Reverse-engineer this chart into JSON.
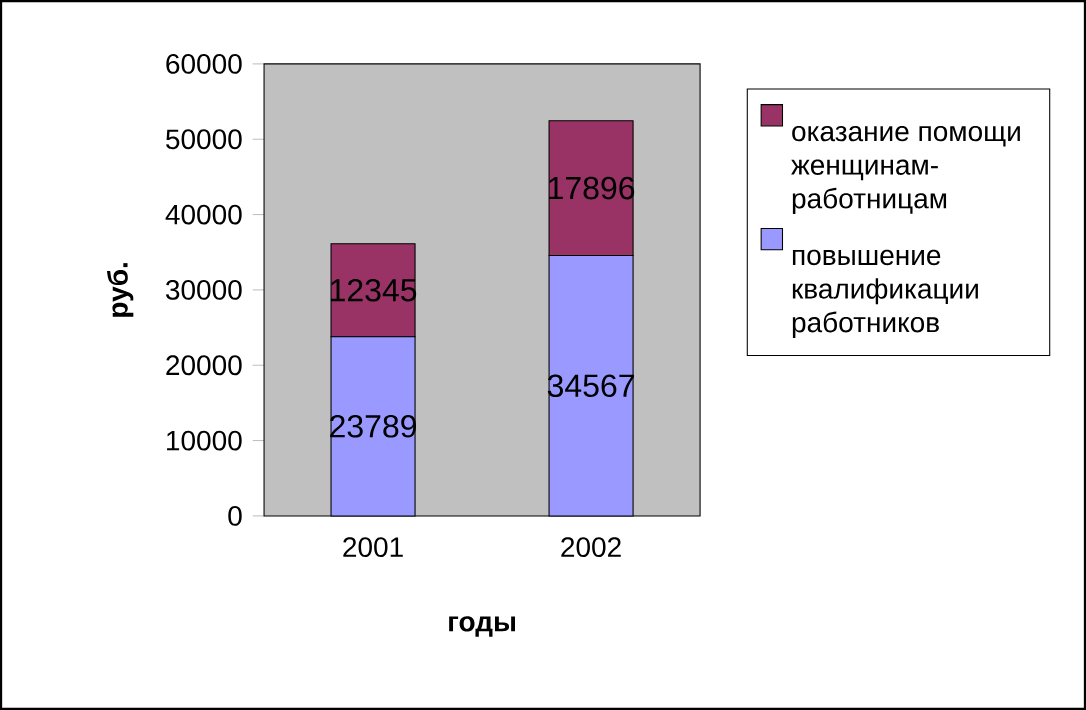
{
  "chart_data": {
    "type": "bar",
    "stacked": true,
    "xlabel": "годы",
    "ylabel": "руб.",
    "categories": [
      "2001",
      "2002"
    ],
    "series": [
      {
        "name": "повышение квалификации работников",
        "color": "#9999ff",
        "values": [
          23789,
          34567
        ],
        "value_labels": [
          "23789",
          "34567"
        ]
      },
      {
        "name": "оказание помощи женщинам-работницам",
        "color": "#993366",
        "values": [
          12345,
          17896
        ],
        "value_labels": [
          "12345",
          "17896"
        ]
      }
    ],
    "ylim": [
      0,
      60000
    ],
    "yticks": [
      0,
      10000,
      20000,
      30000,
      40000,
      50000,
      60000
    ],
    "legend": "right"
  }
}
